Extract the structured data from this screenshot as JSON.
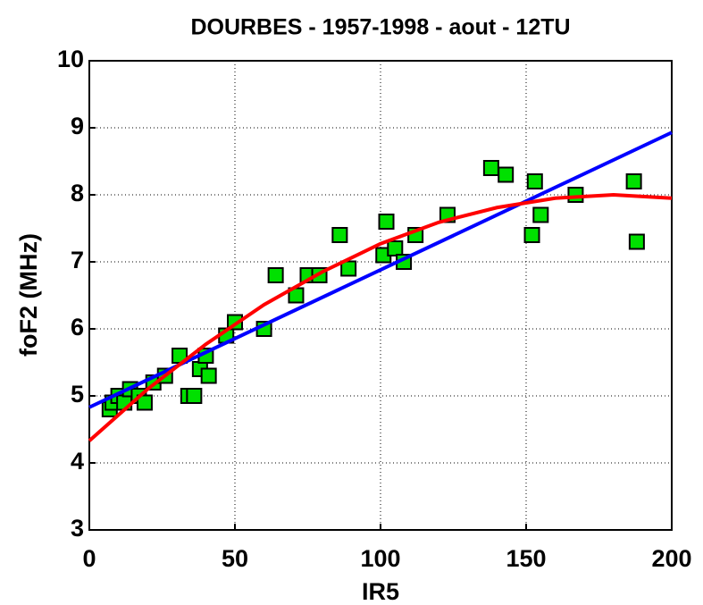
{
  "chart_data": {
    "type": "scatter",
    "title": "DOURBES - 1957-1998 - aout - 12TU",
    "x_label": "IR5",
    "y_label": "foF2 (MHz)",
    "xlim": [
      0,
      200
    ],
    "xticks": [
      0,
      50,
      100,
      150,
      200
    ],
    "ylim": [
      3,
      10
    ],
    "yticks": [
      3,
      4,
      5,
      6,
      7,
      8,
      9,
      10
    ],
    "grid": true,
    "series": [
      {
        "type": "scatter",
        "color": "#00e000",
        "x": [
          7,
          8,
          10,
          12,
          14,
          17,
          19,
          22,
          26,
          31,
          34,
          36,
          38,
          40,
          41,
          47,
          50,
          60,
          64,
          71,
          75,
          79,
          86,
          89,
          101,
          102,
          105,
          108,
          112,
          123,
          138,
          143,
          152,
          153,
          155,
          167,
          187,
          188
        ],
        "values": [
          4.8,
          4.9,
          5.0,
          4.9,
          5.1,
          5.0,
          4.9,
          5.2,
          5.3,
          5.6,
          5.0,
          5.0,
          5.4,
          5.6,
          5.3,
          5.9,
          6.1,
          6.0,
          6.8,
          6.5,
          6.8,
          6.8,
          7.4,
          6.9,
          7.1,
          7.6,
          7.2,
          7.0,
          7.4,
          7.7,
          8.4,
          8.3,
          7.4,
          8.2,
          7.7,
          8.0,
          8.2,
          7.3
        ]
      },
      {
        "type": "line",
        "color": "#0000ff",
        "x": [
          0,
          200
        ],
        "values": [
          4.83,
          8.93
        ]
      },
      {
        "type": "line",
        "color": "#ff0000",
        "x": [
          0,
          20,
          40,
          60,
          80,
          100,
          120,
          140,
          160,
          180,
          200
        ],
        "values": [
          4.33,
          5.1,
          5.77,
          6.36,
          6.85,
          7.27,
          7.59,
          7.81,
          7.95,
          8.0,
          7.95
        ]
      }
    ]
  }
}
